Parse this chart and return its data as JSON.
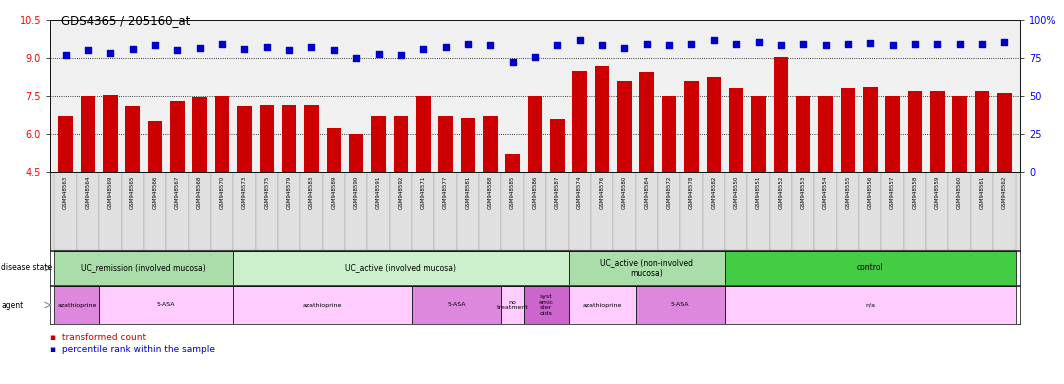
{
  "title": "GDS4365 / 205160_at",
  "ylim_left": [
    4.5,
    10.5
  ],
  "ylim_right": [
    0,
    100
  ],
  "yticks_left": [
    4.5,
    6.0,
    7.5,
    9.0,
    10.5
  ],
  "yticks_right_vals": [
    0,
    25,
    50,
    75,
    100
  ],
  "yticks_right_labels": [
    "0",
    "25",
    "50",
    "75",
    "100%"
  ],
  "samples": [
    "GSM948563",
    "GSM948564",
    "GSM948569",
    "GSM948565",
    "GSM948566",
    "GSM948567",
    "GSM948568",
    "GSM948570",
    "GSM948573",
    "GSM948575",
    "GSM948579",
    "GSM948583",
    "GSM948589",
    "GSM948590",
    "GSM948591",
    "GSM948592",
    "GSM948571",
    "GSM948577",
    "GSM948581",
    "GSM948588",
    "GSM948585",
    "GSM948586",
    "GSM948587",
    "GSM948574",
    "GSM948576",
    "GSM948580",
    "GSM948584",
    "GSM948572",
    "GSM948578",
    "GSM948582",
    "GSM948550",
    "GSM948551",
    "GSM948552",
    "GSM948553",
    "GSM948554",
    "GSM948555",
    "GSM948556",
    "GSM948557",
    "GSM948558",
    "GSM948559",
    "GSM948560",
    "GSM948561",
    "GSM948562"
  ],
  "bar_values": [
    6.7,
    7.5,
    7.55,
    7.1,
    6.5,
    7.3,
    7.45,
    7.5,
    7.1,
    7.15,
    7.15,
    7.15,
    6.25,
    6.0,
    6.7,
    6.7,
    7.5,
    6.7,
    6.65,
    6.7,
    5.2,
    7.5,
    6.6,
    8.5,
    8.7,
    8.1,
    8.45,
    7.5,
    8.1,
    8.25,
    7.8,
    7.5,
    9.05,
    7.5,
    7.5,
    7.8,
    7.85,
    7.5,
    7.7,
    7.7,
    7.5,
    7.7,
    7.6
  ],
  "dot_values": [
    9.1,
    9.3,
    9.2,
    9.35,
    9.5,
    9.3,
    9.4,
    9.55,
    9.35,
    9.45,
    9.3,
    9.45,
    9.3,
    9.0,
    9.15,
    9.1,
    9.35,
    9.45,
    9.55,
    9.5,
    8.85,
    9.05,
    9.5,
    9.7,
    9.5,
    9.4,
    9.55,
    9.5,
    9.55,
    9.7,
    9.55,
    9.65,
    9.5,
    9.55,
    9.5,
    9.55,
    9.6,
    9.5,
    9.55,
    9.55,
    9.55,
    9.55,
    9.65
  ],
  "bar_color": "#cc0000",
  "dot_color": "#0000cc",
  "grid_yticks": [
    6.0,
    7.5,
    9.0
  ],
  "disease_states": [
    {
      "label": "UC_remission (involved mucosa)",
      "start": 0,
      "end": 8,
      "color": "#aaddaa"
    },
    {
      "label": "UC_active (involved mucosa)",
      "start": 8,
      "end": 23,
      "color": "#ccf0cc"
    },
    {
      "label": "UC_active (non-involved\nmucosa)",
      "start": 23,
      "end": 30,
      "color": "#aaddaa"
    },
    {
      "label": "control",
      "start": 30,
      "end": 43,
      "color": "#44cc44"
    }
  ],
  "agents": [
    {
      "label": "azathioprine",
      "start": 0,
      "end": 2,
      "color": "#dd88dd"
    },
    {
      "label": "5-ASA",
      "start": 2,
      "end": 8,
      "color": "#ffccff"
    },
    {
      "label": "azathioprine",
      "start": 8,
      "end": 16,
      "color": "#ffccff"
    },
    {
      "label": "5-ASA",
      "start": 16,
      "end": 20,
      "color": "#dd88dd"
    },
    {
      "label": "no\ntreatment",
      "start": 20,
      "end": 21,
      "color": "#ffccff"
    },
    {
      "label": "syst\nemic\nster\noids",
      "start": 21,
      "end": 23,
      "color": "#cc66cc"
    },
    {
      "label": "azathioprine",
      "start": 23,
      "end": 26,
      "color": "#ffccff"
    },
    {
      "label": "5-ASA",
      "start": 26,
      "end": 30,
      "color": "#dd88dd"
    },
    {
      "label": "n/a",
      "start": 30,
      "end": 43,
      "color": "#ffccff"
    }
  ],
  "plot_bg": "#f0f0f0",
  "xtick_bg": "#e0e0e0"
}
